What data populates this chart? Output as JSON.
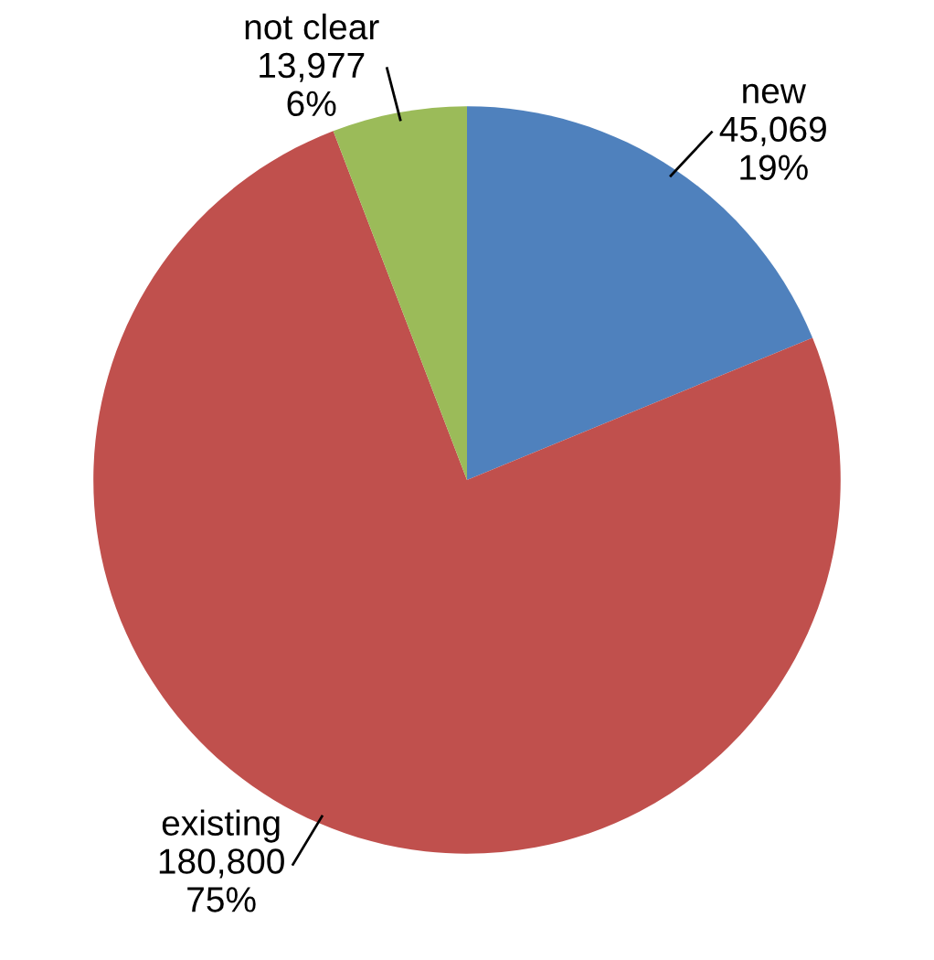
{
  "chart_data": {
    "type": "pie",
    "categories": [
      "new",
      "existing",
      "not clear"
    ],
    "values": [
      45069,
      180800,
      13977
    ],
    "colors": [
      "#4f81bd",
      "#c0504d",
      "#9bbb59"
    ],
    "value_labels": [
      "45,069\n19%",
      "180,800\n75%",
      "13,977\n6%"
    ]
  }
}
